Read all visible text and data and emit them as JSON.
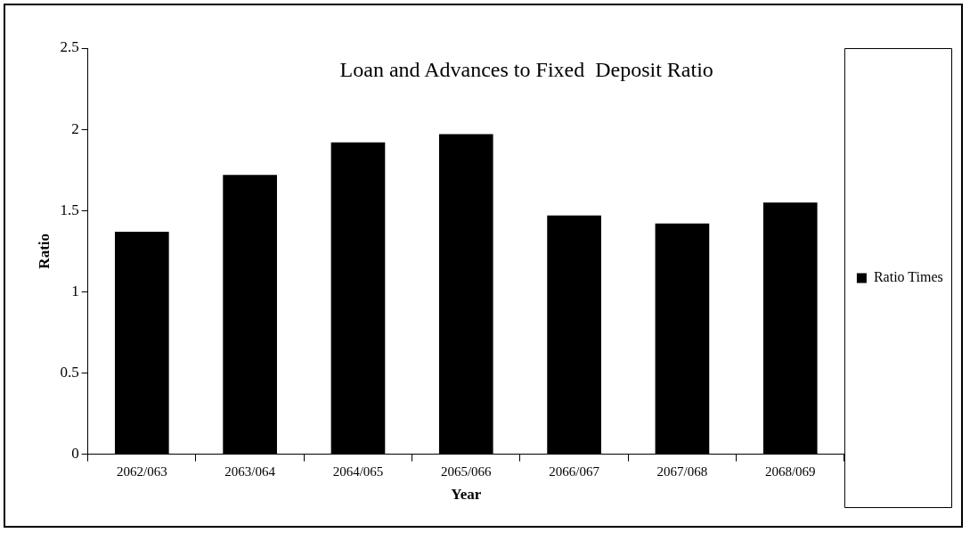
{
  "chart_data": {
    "type": "bar",
    "title": "Loan and Advances to Fixed  Deposit Ratio",
    "xlabel": "Year",
    "ylabel": "Ratio",
    "categories": [
      "2062/063",
      "2063/064",
      "2064/065",
      "2065/066",
      "2066/067",
      "2067/068",
      "2068/069"
    ],
    "series": [
      {
        "name": "Ratio Times",
        "color": "#000000",
        "values": [
          1.37,
          1.72,
          1.92,
          1.97,
          1.47,
          1.42,
          1.55
        ]
      }
    ],
    "ylim": [
      0,
      2.5
    ],
    "yticks": [
      0,
      0.5,
      1,
      1.5,
      2,
      2.5
    ],
    "grid": false,
    "legend": "right"
  }
}
